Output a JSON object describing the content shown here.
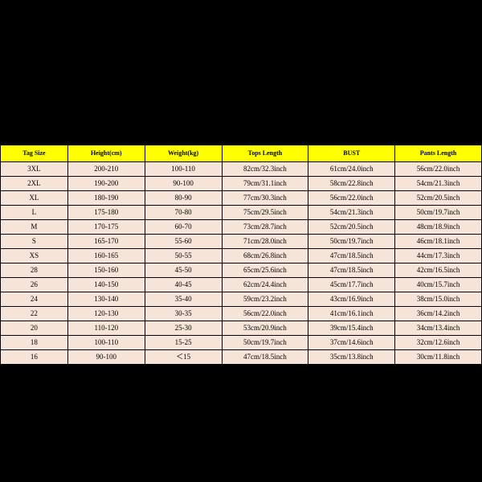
{
  "table": {
    "type": "table",
    "header_bg": "#ffff00",
    "body_bg": "#f5e4d7",
    "border_color": "#000000",
    "page_bg": "#000000",
    "header_fontsize": 8,
    "body_fontsize": 9,
    "font_family": "Times New Roman",
    "columns": [
      {
        "key": "tag",
        "label": "Tag Size",
        "width_pct": 14
      },
      {
        "key": "height",
        "label": "Height(cm)",
        "width_pct": 16
      },
      {
        "key": "weight",
        "label": "Weight(kg)",
        "width_pct": 16
      },
      {
        "key": "tops",
        "label": "Tops Length",
        "width_pct": 18
      },
      {
        "key": "bust",
        "label": "BUST",
        "width_pct": 18
      },
      {
        "key": "pants",
        "label": "Pants Length",
        "width_pct": 18
      }
    ],
    "rows": [
      {
        "tag": "3XL",
        "height": "200-210",
        "weight": "100-110",
        "tops": "82cm/32.3inch",
        "bust": "61cm/24.0inch",
        "pants": "56cm/22.0inch"
      },
      {
        "tag": "2XL",
        "height": "190-200",
        "weight": "90-100",
        "tops": "79cm/31.1inch",
        "bust": "58cm/22.8inch",
        "pants": "54cm/21.3inch"
      },
      {
        "tag": "XL",
        "height": "180-190",
        "weight": "80-90",
        "tops": "77cm/30.3inch",
        "bust": "56cm/22.0inch",
        "pants": "52cm/20.5inch"
      },
      {
        "tag": "L",
        "height": "175-180",
        "weight": "70-80",
        "tops": "75cm/29.5inch",
        "bust": "54cm/21.3inch",
        "pants": "50cm/19.7inch"
      },
      {
        "tag": "M",
        "height": "170-175",
        "weight": "60-70",
        "tops": "73cm/28.7inch",
        "bust": "52cm/20.5inch",
        "pants": "48cm/18.9inch"
      },
      {
        "tag": "S",
        "height": "165-170",
        "weight": "55-60",
        "tops": "71cm/28.0inch",
        "bust": "50cm/19.7inch",
        "pants": "46cm/18.1inch"
      },
      {
        "tag": "XS",
        "height": "160-165",
        "weight": "50-55",
        "tops": "68cm/26.8inch",
        "bust": "47cm/18.5inch",
        "pants": "44cm/17.3inch"
      },
      {
        "tag": "28",
        "height": "150-160",
        "weight": "45-50",
        "tops": "65cm/25.6inch",
        "bust": "47cm/18.5inch",
        "pants": "42cm/16.5inch"
      },
      {
        "tag": "26",
        "height": "140-150",
        "weight": "40-45",
        "tops": "62cm/24.4inch",
        "bust": "45cm/17.7inch",
        "pants": "40cm/15.7inch"
      },
      {
        "tag": "24",
        "height": "130-140",
        "weight": "35-40",
        "tops": "59cm/23.2inch",
        "bust": "43cm/16.9inch",
        "pants": "38cm/15.0inch"
      },
      {
        "tag": "22",
        "height": "120-130",
        "weight": "30-35",
        "tops": "56cm/22.0inch",
        "bust": "41cm/16.1inch",
        "pants": "36cm/14.2inch"
      },
      {
        "tag": "20",
        "height": "110-120",
        "weight": "25-30",
        "tops": "53cm/20.9inch",
        "bust": "39cm/15.4inch",
        "pants": "34cm/13.4inch"
      },
      {
        "tag": "18",
        "height": "100-110",
        "weight": "15-25",
        "tops": "50cm/19.7inch",
        "bust": "37cm/14.6inch",
        "pants": "32cm/12.6inch"
      },
      {
        "tag": "16",
        "height": "90-100",
        "weight": "＜15",
        "tops": "47cm/18.5inch",
        "bust": "35cm/13.8inch",
        "pants": "30cm/11.8inch"
      }
    ]
  }
}
